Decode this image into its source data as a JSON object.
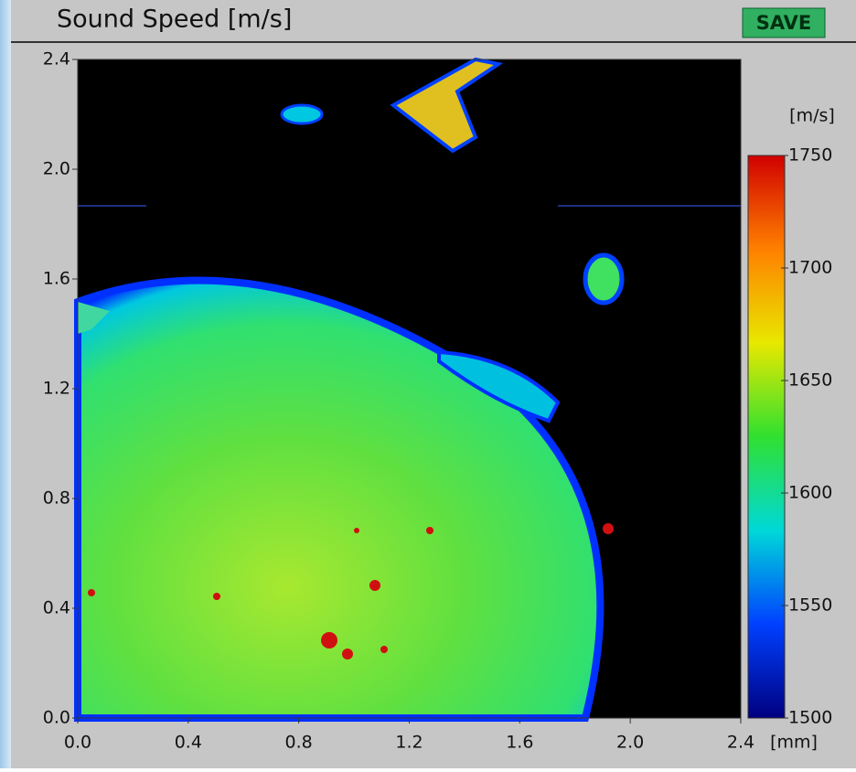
{
  "chart_data": {
    "type": "heatmap",
    "title": "Sound Speed [m/s]",
    "button": "SAVE",
    "x_unit": "[mm]",
    "colorbar_unit": "[m/s]",
    "xlim": [
      0,
      2.4
    ],
    "ylim": [
      0,
      2.4
    ],
    "xticks": [
      {
        "value": 0,
        "label": "0.0"
      },
      0.4,
      0.8,
      1.2,
      1.6,
      {
        "value": 2,
        "label": "2.0"
      },
      2.4
    ],
    "yticks": [
      {
        "value": 0,
        "label": "0.0"
      },
      0.4,
      0.8,
      1.2,
      1.6,
      {
        "value": 2,
        "label": "2.0"
      },
      2.4
    ],
    "clim": [
      1500,
      1750
    ],
    "cticks": [
      1500,
      1550,
      1600,
      1650,
      1700,
      1750
    ],
    "colormap": [
      "#d00000",
      "#ff8000",
      "#e8e800",
      "#30e030",
      "#00d8d8",
      "#0040ff",
      "#000080"
    ]
  }
}
